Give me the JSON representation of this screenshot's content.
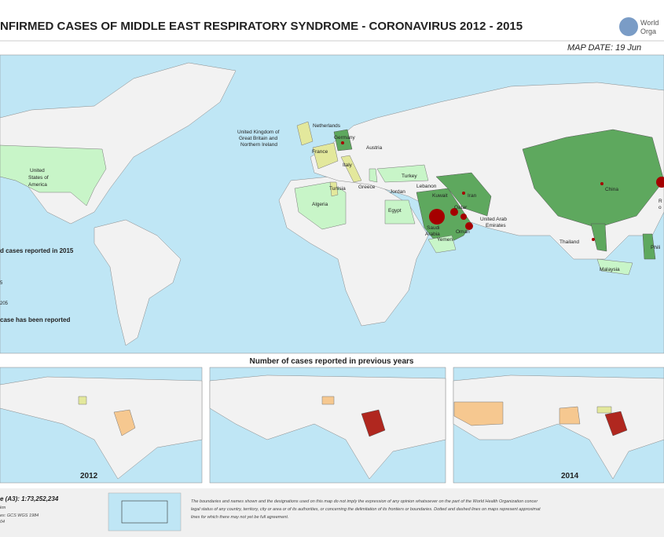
{
  "header": {
    "title": "NFIRMED CASES OF MIDDLE EAST RESPIRATORY SYNDROME - CORONAVIRUS 2012 - 2015",
    "map_date": "MAP DATE: 19 Jun",
    "who": [
      "World",
      "Orga"
    ]
  },
  "labels": {
    "uk": [
      "United Kingdom of",
      "Great Britain and",
      "Northern Ireland"
    ],
    "netherlands": "Netherlands",
    "germany": "Germany",
    "austria": "Austria",
    "france": "France",
    "italy": "Italy",
    "tunisia": "Tunisia",
    "greece": "Greece",
    "turkey": "Turkey",
    "lebanon": "Lebanon",
    "jordan": "Jordan",
    "kuwait": "Kuwait",
    "iran": "Iran",
    "qatar": "Qatar",
    "egypt": "Egypt",
    "algeria": "Algeria",
    "saudi": [
      "Saudi",
      "Arabia"
    ],
    "yemen": "Yemen",
    "oman": "Oman",
    "uae": [
      "United Arab",
      "Emirates"
    ],
    "china": "China",
    "thailand": "Thailand",
    "malaysia": "Malaysia",
    "philippines": "Phili",
    "korea": [
      "R",
      "o"
    ],
    "usa": [
      "United",
      "States of",
      "America"
    ]
  },
  "legend": {
    "title": "d cases reported in 2015",
    "small": "5",
    "large": "205",
    "none": "case has been reported"
  },
  "insets": {
    "title": "Number of cases reported in previous years",
    "years": [
      "2012",
      "2014"
    ]
  },
  "footer": {
    "scale": "e (A3): 1:73,252,234",
    "unit": "km",
    "projection": "es: GCS WGS 1984",
    "code": "04",
    "disclaimer": [
      "The boundaries and names shown and the designations used on this map do not imply the expression of any opinion whatsoever on the part of the World Health Organization concer",
      "legal status of any country, territory, city or area or of its authorities, or concerning the delimitation of its frontiers or boundaries. Dotted and dashed lines on maps represent approximat",
      "lines for which there may not yet be full agreement."
    ]
  }
}
